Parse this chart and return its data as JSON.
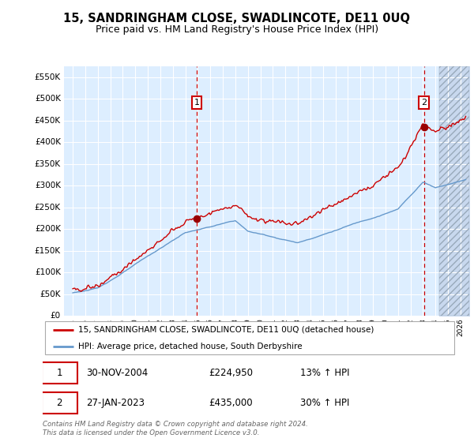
{
  "title": "15, SANDRINGHAM CLOSE, SWADLINCOTE, DE11 0UQ",
  "subtitle": "Price paid vs. HM Land Registry's House Price Index (HPI)",
  "title_fontsize": 10.5,
  "subtitle_fontsize": 9,
  "background_color": "#ffffff",
  "plot_bg_color": "#ddeeff",
  "grid_color": "#ffffff",
  "red_line_color": "#cc0000",
  "blue_line_color": "#6699cc",
  "marker_color": "#990000",
  "vline_color": "#cc0000",
  "annotation_box_color": "#cc0000",
  "ylim": [
    0,
    575000
  ],
  "yticks": [
    0,
    50000,
    100000,
    150000,
    200000,
    250000,
    300000,
    350000,
    400000,
    450000,
    500000,
    550000
  ],
  "ytick_labels": [
    "£0",
    "£50K",
    "£100K",
    "£150K",
    "£200K",
    "£250K",
    "£300K",
    "£350K",
    "£400K",
    "£450K",
    "£500K",
    "£550K"
  ],
  "xlim_left": 1994.3,
  "xlim_right": 2026.7,
  "hatch_start": 2024.3,
  "sale1_x": 2004.92,
  "sale1_y": 224950,
  "sale1_label": "1",
  "sale2_x": 2023.07,
  "sale2_y": 435000,
  "sale2_label": "2",
  "legend_line1": "15, SANDRINGHAM CLOSE, SWADLINCOTE, DE11 0UQ (detached house)",
  "legend_line2": "HPI: Average price, detached house, South Derbyshire",
  "table_row1_num": "1",
  "table_row1_date": "30-NOV-2004",
  "table_row1_price": "£224,950",
  "table_row1_hpi": "13% ↑ HPI",
  "table_row2_num": "2",
  "table_row2_date": "27-JAN-2023",
  "table_row2_price": "£435,000",
  "table_row2_hpi": "30% ↑ HPI",
  "footer": "Contains HM Land Registry data © Crown copyright and database right 2024.\nThis data is licensed under the Open Government Licence v3.0."
}
